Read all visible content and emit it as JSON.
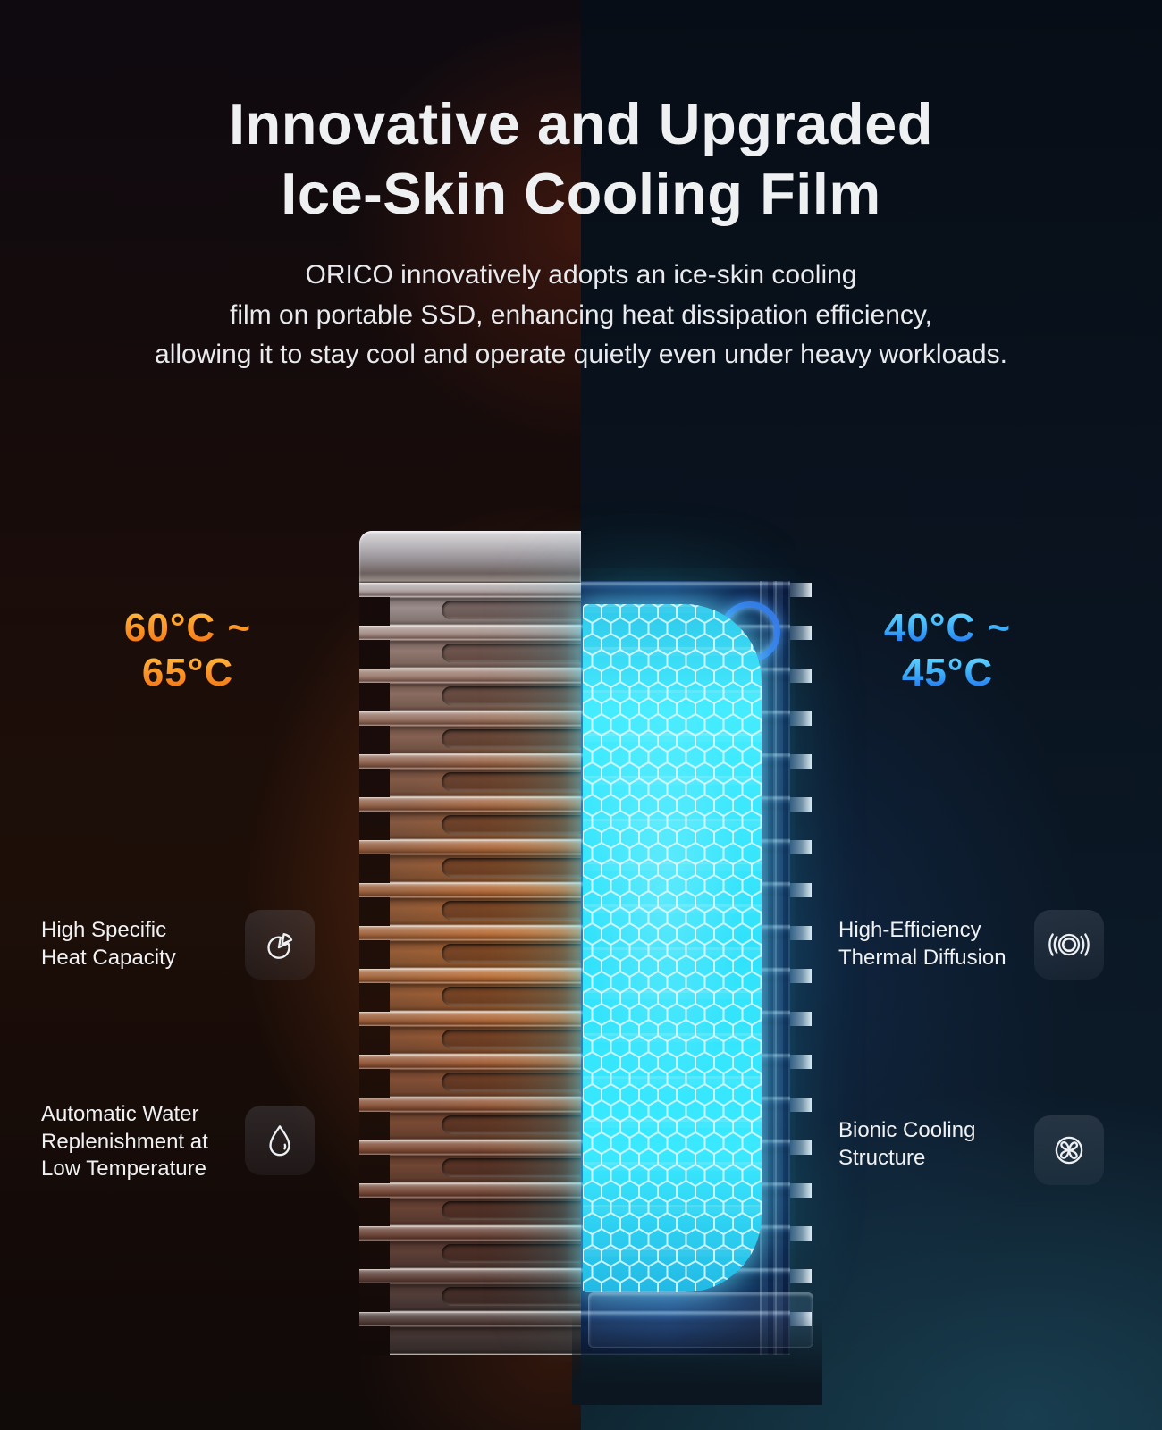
{
  "header": {
    "title_lines": [
      "Innovative and Upgraded",
      "Ice-Skin Cooling Film"
    ],
    "subtitle_lines": [
      "ORICO innovatively adopts an ice-skin cooling",
      "film on portable SSD, enhancing heat dissipation efficiency,",
      "allowing it to stay cool and operate quietly even under heavy workloads."
    ]
  },
  "temperatures": {
    "hot_range": "60°C ~ 65°C",
    "cold_range": "40°C ~ 45°C"
  },
  "features": {
    "left": [
      {
        "lines": [
          "High Specific",
          "Heat Capacity"
        ],
        "icon": "pie-chart-icon"
      },
      {
        "lines": [
          "Automatic Water",
          "Replenishment at",
          "Low Temperature"
        ],
        "icon": "water-drop-icon"
      }
    ],
    "right": [
      {
        "lines": [
          "High-Efficiency",
          "Thermal Diffusion"
        ],
        "icon": "thermal-diffusion-icon"
      },
      {
        "lines": [
          "Bionic Cooling",
          "Structure"
        ],
        "icon": "fan-icon"
      }
    ]
  },
  "colors": {
    "hot_label_top": "#ffc24a",
    "hot_label_bottom": "#ef6c15",
    "cold_label_top": "#72e4ff",
    "cold_label_bottom": "#1e63ec",
    "core_glow": "#35e2ff",
    "hot_metal": "#a6683d",
    "cold_shell": "#1d3a97",
    "title_text": "#eff0f2"
  }
}
